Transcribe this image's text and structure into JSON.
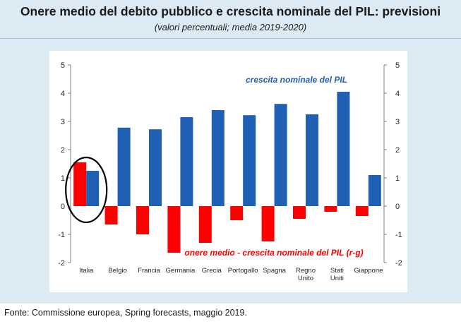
{
  "title": "Onere medio del debito pubblico e crescita nominale del PIL: previsioni",
  "subtitle": "(valori percentuali; media 2019-2020)",
  "source": "Fonte: Commissione europea, Spring forecasts, maggio 2019.",
  "chart_data": {
    "type": "bar",
    "categories": [
      [
        "Italia"
      ],
      [
        "Belgio"
      ],
      [
        "Francia"
      ],
      [
        "Germania"
      ],
      [
        "Grecia"
      ],
      [
        "Portogallo"
      ],
      [
        "Spagna"
      ],
      [
        "Regno",
        "Unito"
      ],
      [
        "Stati",
        "Uniti"
      ],
      [
        "Giappone"
      ]
    ],
    "series": [
      {
        "name": "onere medio - crescita nominale del PIL (r-g)",
        "color": "#ff0000",
        "values": [
          1.55,
          -0.65,
          -1.0,
          -1.65,
          -1.3,
          -0.5,
          -1.25,
          -0.45,
          -0.2,
          -0.35
        ]
      },
      {
        "name": "crescita nominale del PIL",
        "color": "#1f5fb4",
        "values": [
          1.25,
          2.78,
          2.72,
          3.15,
          3.4,
          3.22,
          3.62,
          3.25,
          4.05,
          1.1
        ]
      }
    ],
    "ylim": [
      -2,
      5
    ],
    "yticks": [
      "-2",
      "-1",
      "0",
      "1",
      "2",
      "3",
      "4",
      "5"
    ],
    "annotation": "Italia circled",
    "grid": false,
    "secondary_axis": true
  }
}
